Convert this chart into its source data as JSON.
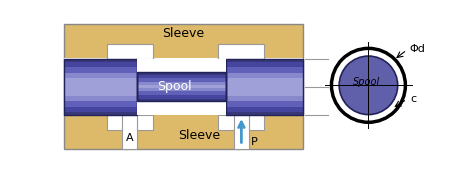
{
  "bg_color": "#ddb96a",
  "spool_base": "#4a4a90",
  "spool_mid": "#6868b0",
  "spool_light": "#9090cc",
  "white_color": "#ffffff",
  "gray_edge": "#999999",
  "sleeve_top_label": "Sleeve",
  "sleeve_bottom_label": "Sleeve",
  "spool_label": "Spool",
  "label_A": "A",
  "label_P": "P",
  "label_phi_d": "Φd",
  "label_c": "c",
  "label_spool_circle": "Spool",
  "arrow_color": "#4499cc",
  "fig_width": 4.74,
  "fig_height": 1.72,
  "dpi": 100
}
